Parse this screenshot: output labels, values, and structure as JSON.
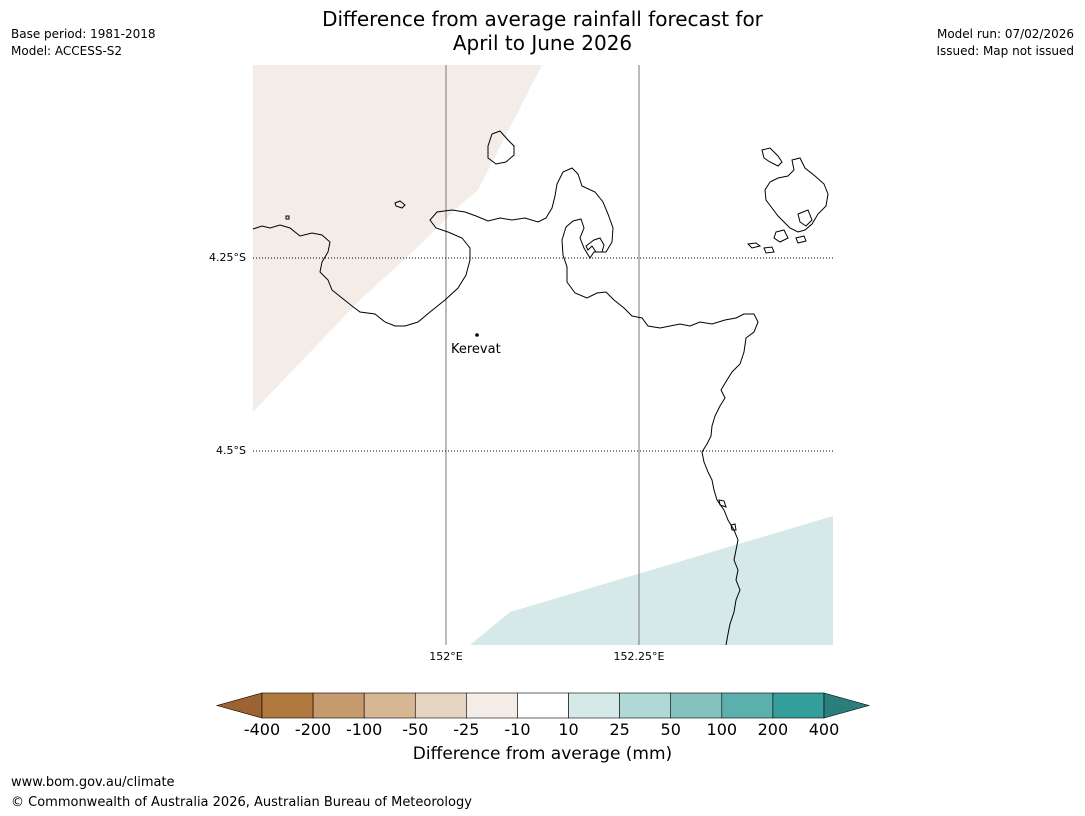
{
  "header": {
    "title_line1": "Difference from average rainfall forecast for",
    "title_line2": "April to June 2026",
    "base_period": "Base period: 1981-2018",
    "model": "Model: ACCESS-S2",
    "model_run": "Model run: 07/02/2026",
    "issued": "Issued: Map not issued"
  },
  "map": {
    "latitude_labels": [
      "4.25°S",
      "4.5°S"
    ],
    "longitude_labels": [
      "152°E",
      "152.25°E"
    ],
    "places": [
      {
        "name": "Kerevat"
      }
    ],
    "shading": [
      {
        "region": "north-west",
        "class": "-25 to -10",
        "color": "#f4ede7"
      },
      {
        "region": "south-east",
        "class": "10 to 25",
        "color": "#d5e9e8"
      }
    ]
  },
  "colorbar": {
    "title": "Difference from average (mm)",
    "ticks": [
      "-400",
      "-200",
      "-100",
      "-50",
      "-25",
      "-10",
      "10",
      "25",
      "50",
      "100",
      "200",
      "400"
    ],
    "colors": [
      "#9c6232",
      "#b07a3f",
      "#c59a6d",
      "#d6b693",
      "#e7d3c2",
      "#f4ede7",
      "#ffffff",
      "#d5e9e8",
      "#afd8d7",
      "#85c2bf",
      "#5bafad",
      "#339e9b",
      "#2a7f7c"
    ]
  },
  "footer": {
    "url": "www.bom.gov.au/climate",
    "copyright": "© Commonwealth of Australia 2026, Australian Bureau of Meteorology"
  }
}
